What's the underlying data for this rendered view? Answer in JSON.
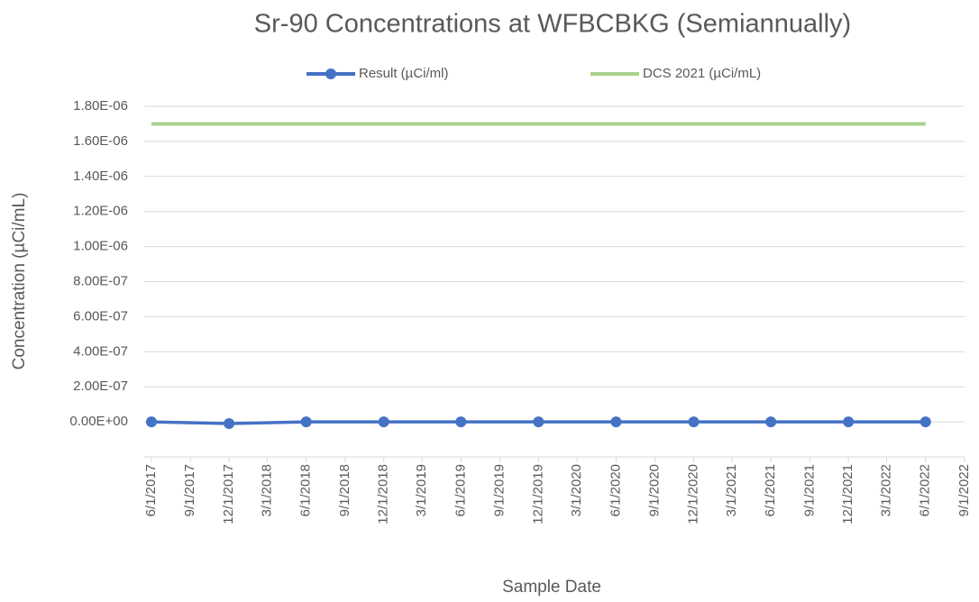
{
  "chart_data": {
    "type": "line",
    "title": "Sr-90 Concentrations at WFBCBKG (Semiannually)",
    "x_label": "Sample Date",
    "y_label": "Concentration (µCi/mL)",
    "x": [
      "2017-06-01",
      "2017-12-01",
      "2018-06-01",
      "2018-12-01",
      "2019-06-01",
      "2019-12-01",
      "2020-06-01",
      "2020-12-01",
      "2021-06-01",
      "2021-12-01",
      "2022-06-01"
    ],
    "series": [
      {
        "name": "Result (µCi/ml)",
        "color": "#4472c4",
        "marker": "circle",
        "values": [
          0,
          -1e-08,
          0,
          0,
          0,
          0,
          0,
          0,
          0,
          0,
          0
        ]
      },
      {
        "name": "DCS 2021 (µCi/mL)",
        "color": "#a9d18e",
        "marker": "none",
        "values": [
          1.7e-06,
          1.7e-06,
          1.7e-06,
          1.7e-06,
          1.7e-06,
          1.7e-06,
          1.7e-06,
          1.7e-06,
          1.7e-06,
          1.7e-06,
          1.7e-06
        ]
      }
    ],
    "xlim": [
      "2017-06-01",
      "2022-09-01"
    ],
    "xticks": [
      {
        "value": "2017-06-01",
        "label": "6/1/2017"
      },
      {
        "value": "2017-09-01",
        "label": "9/1/2017"
      },
      {
        "value": "2017-12-01",
        "label": "12/1/2017"
      },
      {
        "value": "2018-03-01",
        "label": "3/1/2018"
      },
      {
        "value": "2018-06-01",
        "label": "6/1/2018"
      },
      {
        "value": "2018-09-01",
        "label": "9/1/2018"
      },
      {
        "value": "2018-12-01",
        "label": "12/1/2018"
      },
      {
        "value": "2019-03-01",
        "label": "3/1/2019"
      },
      {
        "value": "2019-06-01",
        "label": "6/1/2019"
      },
      {
        "value": "2019-09-01",
        "label": "9/1/2019"
      },
      {
        "value": "2019-12-01",
        "label": "12/1/2019"
      },
      {
        "value": "2020-03-01",
        "label": "3/1/2020"
      },
      {
        "value": "2020-06-01",
        "label": "6/1/2020"
      },
      {
        "value": "2020-09-01",
        "label": "9/1/2020"
      },
      {
        "value": "2020-12-01",
        "label": "12/1/2020"
      },
      {
        "value": "2021-03-01",
        "label": "3/1/2021"
      },
      {
        "value": "2021-06-01",
        "label": "6/1/2021"
      },
      {
        "value": "2021-09-01",
        "label": "9/1/2021"
      },
      {
        "value": "2021-12-01",
        "label": "12/1/2021"
      },
      {
        "value": "2022-03-01",
        "label": "3/1/2022"
      },
      {
        "value": "2022-06-01",
        "label": "6/1/2022"
      },
      {
        "value": "2022-09-01",
        "label": "9/1/2022"
      }
    ],
    "ylim": [
      -2e-07,
      1.8e-06
    ],
    "yticks": [
      {
        "value": 0,
        "label": "0.00E+00"
      },
      {
        "value": 2e-07,
        "label": "2.00E-07"
      },
      {
        "value": 4e-07,
        "label": "4.00E-07"
      },
      {
        "value": 6e-07,
        "label": "6.00E-07"
      },
      {
        "value": 8e-07,
        "label": "8.00E-07"
      },
      {
        "value": 1e-06,
        "label": "1.00E-06"
      },
      {
        "value": 1.2e-06,
        "label": "1.20E-06"
      },
      {
        "value": 1.4e-06,
        "label": "1.40E-06"
      },
      {
        "value": 1.6e-06,
        "label": "1.60E-06"
      },
      {
        "value": 1.8e-06,
        "label": "1.80E-06"
      }
    ],
    "grid": true,
    "legend": "top"
  }
}
